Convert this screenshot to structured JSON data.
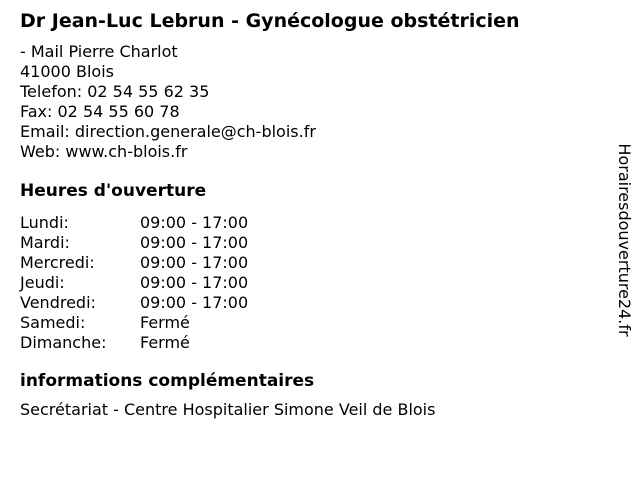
{
  "header": {
    "title": "Dr Jean-Luc Lebrun - Gynécologue obstétricien"
  },
  "contact": {
    "address_line1": "- Mail Pierre Charlot",
    "address_line2": "41000 Blois",
    "phone_label": "Telefon:",
    "phone_value": "02 54 55 62 35",
    "fax_label": "Fax:",
    "fax_value": "02 54 55 60 78",
    "email_label": "Email:",
    "email_value": "direction.generale@ch-blois.fr",
    "web_label": "Web:",
    "web_value": "www.ch-blois.fr"
  },
  "hours": {
    "heading": "Heures d'ouverture",
    "rows": [
      {
        "day": "Lundi:",
        "time": "09:00 - 17:00"
      },
      {
        "day": "Mardi:",
        "time": "09:00 - 17:00"
      },
      {
        "day": "Mercredi:",
        "time": "09:00 - 17:00"
      },
      {
        "day": "Jeudi:",
        "time": "09:00 - 17:00"
      },
      {
        "day": "Vendredi:",
        "time": "09:00 - 17:00"
      },
      {
        "day": "Samedi:",
        "time": "Fermé"
      },
      {
        "day": "Dimanche:",
        "time": "Fermé"
      }
    ]
  },
  "additional_info": {
    "heading": "informations complémentaires",
    "text": "Secrétariat - Centre Hospitalier Simone Veil de Blois"
  },
  "watermark": {
    "text": "Horairesdouverture24.fr"
  },
  "colors": {
    "background": "#ffffff",
    "text": "#000000"
  }
}
